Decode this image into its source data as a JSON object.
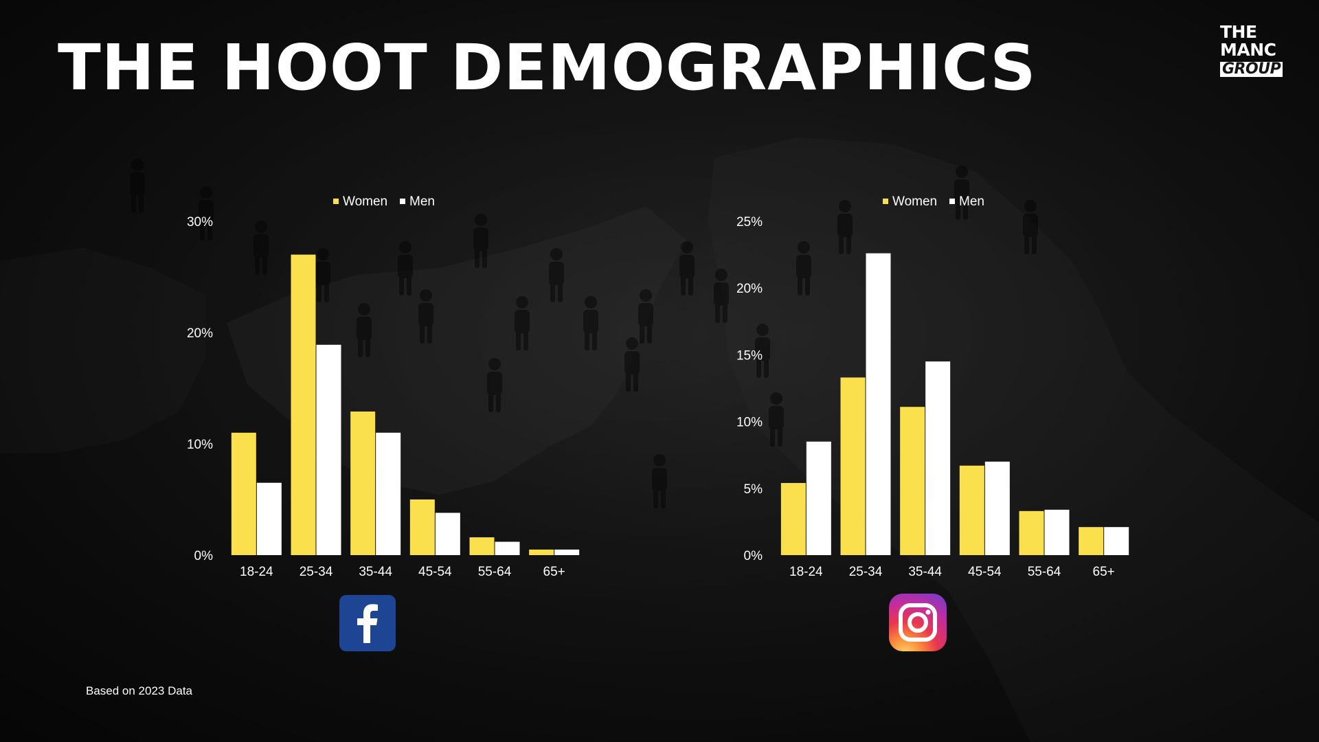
{
  "title": "THE HOOT DEMOGRAPHICS",
  "logo": {
    "line1": "THE",
    "line2": "MANC",
    "line3": "GROUP"
  },
  "footnote": "Based on 2023 Data",
  "icons": {
    "facebook": "facebook-icon",
    "instagram": "instagram-icon"
  },
  "colors": {
    "women": "#fbe04e",
    "men": "#ffffff",
    "text": "#ffffff",
    "background": "#151515"
  },
  "chart_data": [
    {
      "type": "bar",
      "platform": "Facebook",
      "categories": [
        "18-24",
        "25-34",
        "35-44",
        "45-54",
        "55-64",
        "65+"
      ],
      "series": [
        {
          "name": "Women",
          "values": [
            11,
            27,
            12.9,
            5,
            1.6,
            0.5
          ]
        },
        {
          "name": "Men",
          "values": [
            6.5,
            18.9,
            11,
            3.8,
            1.2,
            0.5
          ]
        }
      ],
      "yticks": [
        "0%",
        "10%",
        "20%",
        "30%"
      ],
      "ylim": [
        0,
        30
      ],
      "legend": "top-center",
      "grid": false
    },
    {
      "type": "bar",
      "platform": "Instagram",
      "categories": [
        "18-24",
        "25-34",
        "35-44",
        "45-54",
        "55-64",
        "65+"
      ],
      "series": [
        {
          "name": "Women",
          "values": [
            5.4,
            13.3,
            11.1,
            6.7,
            3.3,
            2.1
          ]
        },
        {
          "name": "Men",
          "values": [
            8.5,
            22.6,
            14.5,
            7,
            3.4,
            2.1
          ]
        }
      ],
      "yticks": [
        "0%",
        "5%",
        "10%",
        "15%",
        "20%",
        "25%"
      ],
      "ylim": [
        0,
        25
      ],
      "legend": "top-center",
      "grid": false
    }
  ]
}
